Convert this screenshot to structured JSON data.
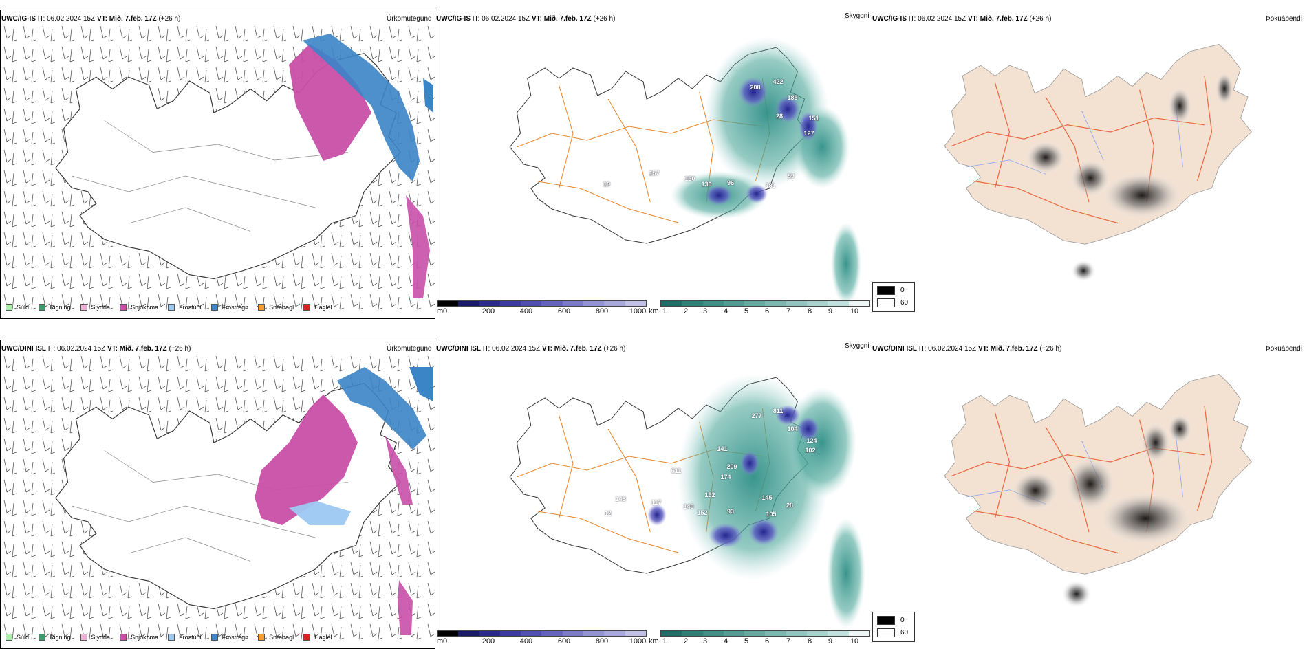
{
  "colors": {
    "sudd": "#a6f0a6",
    "rigning": "#3c9a6b",
    "slydda": "#f2b3d9",
    "snjokoma": "#c94fa8",
    "frostudi": "#9cc8f2",
    "frostregn": "#3b84c6",
    "snaehagl": "#f0a030",
    "haglel": "#e02020",
    "teal": "#2f8f86",
    "road": "#e8852a",
    "land_fog": "#f3e1d2",
    "road_fog": "#e86a40"
  },
  "rows": [
    {
      "model_label": "UWC/IG-IS",
      "it_label": "IT:",
      "it_value": "06.02.2024 15Z",
      "vt_label": "VT:",
      "vt_value": "Mið. 7.feb. 17Z",
      "lead": "(+26 h)",
      "precip_title": "Úrkomutegund",
      "vis_title": "Skyggni",
      "fog_title": "Þokuábendi",
      "cloud_numbers": [
        "208",
        "422",
        "185",
        "151",
        "127",
        "28",
        "150",
        "130",
        "96",
        "181",
        "157",
        "19",
        "59"
      ]
    },
    {
      "model_label": "UWC/DINI ISL",
      "it_label": "IT:",
      "it_value": "06.02.2024 15Z",
      "vt_label": "VT:",
      "vt_value": "Mið. 7.feb. 17Z",
      "lead": "(+26 h)",
      "precip_title": "Úrkomutegund",
      "vis_title": "Skyggni",
      "fog_title": "Þokuábendi",
      "cloud_numbers": [
        "277",
        "811",
        "104",
        "124",
        "102",
        "141",
        "209",
        "174",
        "611",
        "192",
        "145",
        "140",
        "152",
        "93",
        "105",
        "28",
        "117",
        "12",
        "143"
      ]
    }
  ],
  "precip_legend": [
    "Súld",
    "Rigning",
    "Slydda",
    "Snjókoma",
    "Frostúði",
    "Frostregn",
    "Snæhagl",
    "Haglél"
  ],
  "cloud_scale": {
    "unit": "m",
    "ticks": [
      "0",
      "200",
      "400",
      "600",
      "800",
      "1000"
    ]
  },
  "vis_scale": {
    "unit": "km",
    "ticks": [
      "1",
      "2",
      "3",
      "4",
      "5",
      "6",
      "7",
      "8",
      "9",
      "10"
    ]
  },
  "fog_legend": [
    "0",
    "60"
  ]
}
